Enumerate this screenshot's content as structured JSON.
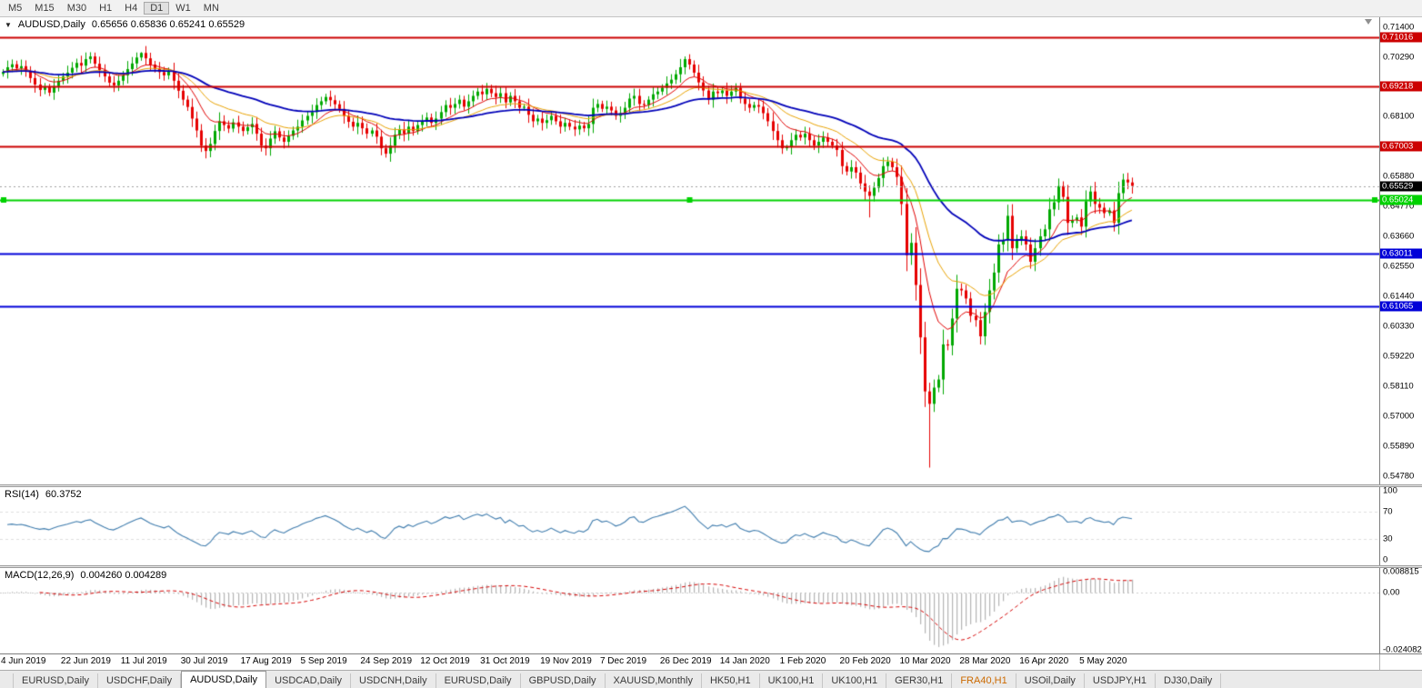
{
  "toolbar": {
    "timeframes": [
      "M5",
      "M15",
      "M30",
      "H1",
      "H4",
      "D1",
      "W1",
      "MN"
    ],
    "active_timeframe": "D1"
  },
  "chart_data": {
    "type": "candlestick",
    "main": {
      "symbol_label": "AUDUSD,Daily",
      "ohlc_label": "0.65656 0.65836 0.65241 0.65529",
      "dropdown_icon": "▼",
      "last_candle": {
        "open": 0.65656,
        "high": 0.65836,
        "low": 0.65241,
        "close": 0.65529
      },
      "y_min": 0.5478,
      "y_max": 0.714,
      "shift_fraction": 0.822,
      "default_wick": 0.0022,
      "up_color": "#00a800",
      "down_color": "#e60000",
      "closes": [
        0.6975,
        0.6992,
        0.7003,
        0.6988,
        0.6996,
        0.6978,
        0.6952,
        0.6928,
        0.6908,
        0.6918,
        0.6898,
        0.6922,
        0.6942,
        0.6958,
        0.6972,
        0.699,
        0.7008,
        0.6998,
        0.7022,
        0.7032,
        0.7005,
        0.6982,
        0.6958,
        0.6935,
        0.6925,
        0.6942,
        0.6962,
        0.6985,
        0.7006,
        0.7028,
        0.7045,
        0.7025,
        0.7002,
        0.6986,
        0.6974,
        0.6962,
        0.6976,
        0.6942,
        0.6905,
        0.6872,
        0.6845,
        0.6802,
        0.6758,
        0.6702,
        0.6682,
        0.6708,
        0.6756,
        0.6792,
        0.6778,
        0.6765,
        0.6788,
        0.6772,
        0.6756,
        0.677,
        0.6782,
        0.6746,
        0.6702,
        0.6692,
        0.6728,
        0.6755,
        0.6732,
        0.6716,
        0.6738,
        0.6758,
        0.6772,
        0.6795,
        0.6812,
        0.6826,
        0.6852,
        0.6866,
        0.6882,
        0.687,
        0.6855,
        0.6838,
        0.6812,
        0.679,
        0.6772,
        0.6786,
        0.6766,
        0.6746,
        0.6758,
        0.6735,
        0.6692,
        0.6672,
        0.6702,
        0.6742,
        0.6762,
        0.6746,
        0.6772,
        0.6756,
        0.6778,
        0.6792,
        0.6806,
        0.6786,
        0.6802,
        0.6826,
        0.6852,
        0.6842,
        0.6856,
        0.6872,
        0.6846,
        0.6866,
        0.6886,
        0.6902,
        0.6892,
        0.6912,
        0.6896,
        0.6882,
        0.6896,
        0.6862,
        0.6886,
        0.6866,
        0.6842,
        0.6846,
        0.6816,
        0.6792,
        0.6802,
        0.6786,
        0.6796,
        0.6812,
        0.6792,
        0.6772,
        0.6786,
        0.6772,
        0.6762,
        0.6776,
        0.6766,
        0.6782,
        0.6842,
        0.6856,
        0.6838,
        0.6846,
        0.6832,
        0.6812,
        0.6822,
        0.6842,
        0.6876,
        0.6886,
        0.6856,
        0.6852,
        0.6872,
        0.6892,
        0.6902,
        0.6916,
        0.6932,
        0.6946,
        0.6966,
        0.6992,
        0.7022,
        0.7002,
        0.6972,
        0.6936,
        0.6906,
        0.6872,
        0.6902,
        0.6896,
        0.6906,
        0.6886,
        0.6902,
        0.6916,
        0.6876,
        0.6856,
        0.6842,
        0.6852,
        0.6846,
        0.6822,
        0.6792,
        0.6756,
        0.6722,
        0.6692,
        0.6696,
        0.6722,
        0.6742,
        0.6732,
        0.6746,
        0.6722,
        0.6702,
        0.6716,
        0.6732,
        0.6716,
        0.6702,
        0.6686,
        0.6626,
        0.6606,
        0.6622,
        0.6602,
        0.6562,
        0.6532,
        0.6516,
        0.6546,
        0.6582,
        0.6626,
        0.6642,
        0.6622,
        0.6586,
        0.6486,
        0.6296,
        0.6342,
        0.6186,
        0.5992,
        0.5792,
        0.5746,
        0.5806,
        0.5836,
        0.5966,
        0.5962,
        0.6062,
        0.6172,
        0.6166,
        0.6136,
        0.6072,
        0.6056,
        0.5996,
        0.6086,
        0.6166,
        0.6232,
        0.6336,
        0.6352,
        0.6442,
        0.6322,
        0.6356,
        0.6366,
        0.6336,
        0.6272,
        0.6322,
        0.6366,
        0.6392,
        0.6466,
        0.6492,
        0.6552,
        0.6512,
        0.6416,
        0.6426,
        0.6436,
        0.6402,
        0.6496,
        0.6532,
        0.6486,
        0.6472,
        0.6452,
        0.6462,
        0.6416,
        0.6526,
        0.6576,
        0.65656,
        0.65529
      ],
      "overrides": {
        "30": {
          "high": 0.7048
        },
        "148": {
          "high": 0.7032
        },
        "188": {
          "low": 0.6436
        },
        "201": {
          "low": 0.551
        },
        "245": {
          "open": 0.65656,
          "high": 0.65836,
          "low": 0.65241,
          "close": 0.65529
        }
      },
      "moving_averages": [
        {
          "period": 10,
          "color": "#e00000",
          "width": 1
        },
        {
          "period": 21,
          "color": "#e8a200",
          "width": 1
        },
        {
          "period": 50,
          "color": "#0000b8",
          "width": 1.8
        }
      ],
      "price_ticks": [
        "0.71400",
        "0.70290",
        "0.68100",
        "0.65880",
        "0.64770",
        "0.63660",
        "0.62550",
        "0.61440",
        "0.60330",
        "0.59220",
        "0.58110",
        "0.57000",
        "0.55890",
        "0.54780"
      ],
      "hlines": [
        {
          "price": 0.71016,
          "label": "0.71016",
          "color": "#cc0000",
          "width": 2
        },
        {
          "price": 0.69218,
          "label": "0.69218",
          "color": "#cc0000",
          "width": 2
        },
        {
          "price": 0.67003,
          "label": "0.67003",
          "color": "#cc0000",
          "width": 2
        },
        {
          "price": 0.65024,
          "label": "0.65024",
          "color": "#00d200",
          "width": 2,
          "handles": true
        },
        {
          "price": 0.63011,
          "label": "0.63011",
          "color": "#0000d8",
          "width": 2
        },
        {
          "price": 0.61065,
          "label": "0.61065",
          "color": "#0000d8",
          "width": 2
        }
      ],
      "bid_line": {
        "price": 0.65529,
        "label": "0.65529",
        "line_color": "#a0a0a0",
        "badge_color": "#000000"
      },
      "date_labels": [
        "4 Jun 2019",
        "22 Jun 2019",
        "11 Jul 2019",
        "30 Jul 2019",
        "17 Aug 2019",
        "5 Sep 2019",
        "24 Sep 2019",
        "12 Oct 2019",
        "31 Oct 2019",
        "19 Nov 2019",
        "7 Dec 2019",
        "26 Dec 2019",
        "14 Jan 2020",
        "1 Feb 2020",
        "20 Feb 2020",
        "10 Mar 2020",
        "28 Mar 2020",
        "16 Apr 2020",
        "5 May 2020"
      ],
      "label_every": 13
    },
    "rsi": {
      "label": "RSI(14)",
      "value": "60.3752",
      "period": 14,
      "color": "#3f7cad",
      "range": [
        0,
        100
      ],
      "levels": [
        30,
        70
      ],
      "ticks": [
        "100",
        "70",
        "30",
        "0"
      ]
    },
    "macd": {
      "label": "MACD(12,26,9)",
      "values": "0.004260 0.004289",
      "fast": 12,
      "slow": 26,
      "signal": 9,
      "range": [
        -0.024082,
        0.008815
      ],
      "ticks": [
        {
          "value": 0.008815,
          "label": "0.008815"
        },
        {
          "value": 0,
          "label": "0.00"
        },
        {
          "value": -0.024082,
          "label": "-0.024082"
        }
      ],
      "hist_color": "#b4b4b4",
      "signal_color": "#d40000"
    }
  },
  "tabs": [
    {
      "label": "EURUSD,Daily"
    },
    {
      "label": "USDCHF,Daily"
    },
    {
      "label": "AUDUSD,Daily",
      "active": true
    },
    {
      "label": "USDCAD,Daily"
    },
    {
      "label": "USDCNH,Daily"
    },
    {
      "label": "EURUSD,Daily"
    },
    {
      "label": "GBPUSD,Daily"
    },
    {
      "label": "XAUUSD,Monthly"
    },
    {
      "label": "HK50,H1"
    },
    {
      "label": "UK100,H1"
    },
    {
      "label": "UK100,H1"
    },
    {
      "label": "GER30,H1"
    },
    {
      "label": "FRA40,H1",
      "color": "#cc6a00"
    },
    {
      "label": "USOil,Daily"
    },
    {
      "label": "USDJPY,H1"
    },
    {
      "label": "DJ30,Daily"
    }
  ]
}
